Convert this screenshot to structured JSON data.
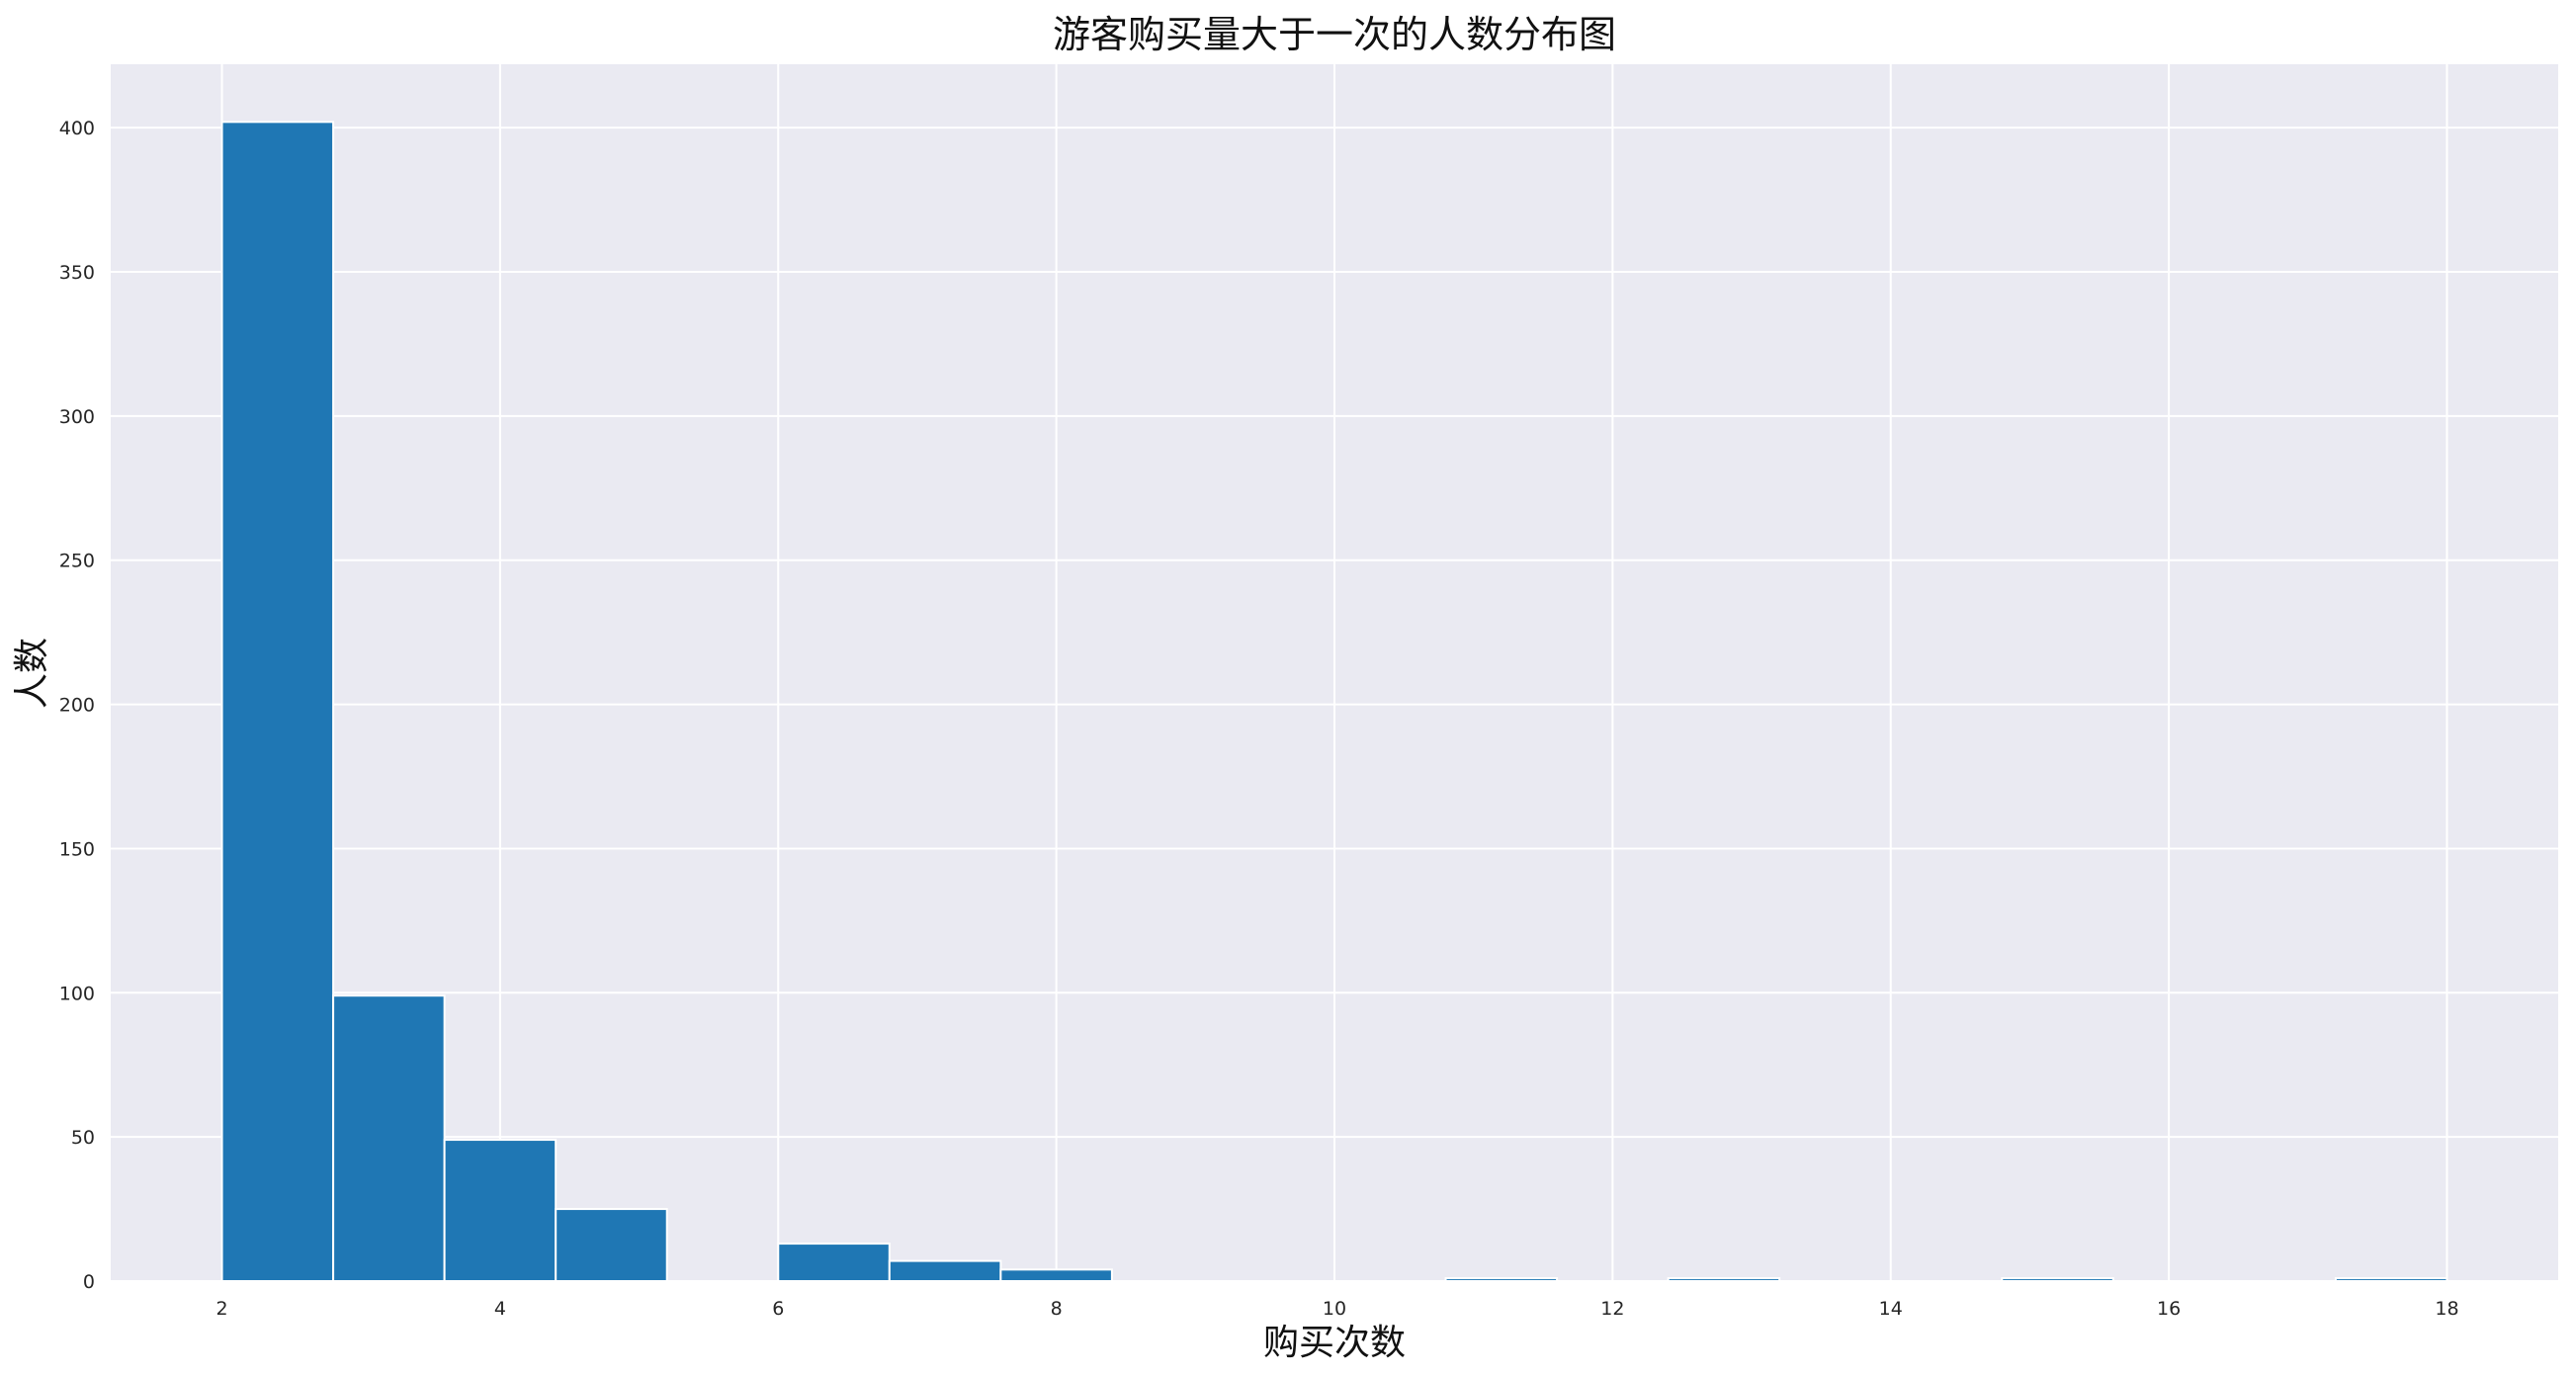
{
  "chart_data": {
    "type": "bar",
    "subtype": "histogram",
    "title": "游客购买量大于一次的人数分布图",
    "xlabel": "购买次数",
    "ylabel": "人数",
    "bin_edges": [
      2.0,
      2.8,
      3.6,
      4.4,
      5.2,
      6.0,
      6.8,
      7.6,
      8.4,
      9.2,
      10.0,
      10.8,
      11.6,
      12.4,
      13.2,
      14.0,
      14.8,
      15.6,
      16.4,
      17.2,
      18.0
    ],
    "values": [
      402,
      99,
      49,
      25,
      0,
      13,
      7,
      4,
      0,
      0,
      0,
      1,
      0,
      1,
      0,
      0,
      1,
      0,
      0,
      1
    ],
    "xlim": [
      1.2,
      18.8
    ],
    "ylim": [
      0,
      422
    ],
    "xticks": [
      2,
      4,
      6,
      8,
      10,
      12,
      14,
      16,
      18
    ],
    "yticks": [
      0,
      50,
      100,
      150,
      200,
      250,
      300,
      350,
      400
    ],
    "grid": true,
    "colors": {
      "bar": "#1f77b4",
      "background": "#eaeaf2",
      "grid": "#ffffff"
    }
  }
}
